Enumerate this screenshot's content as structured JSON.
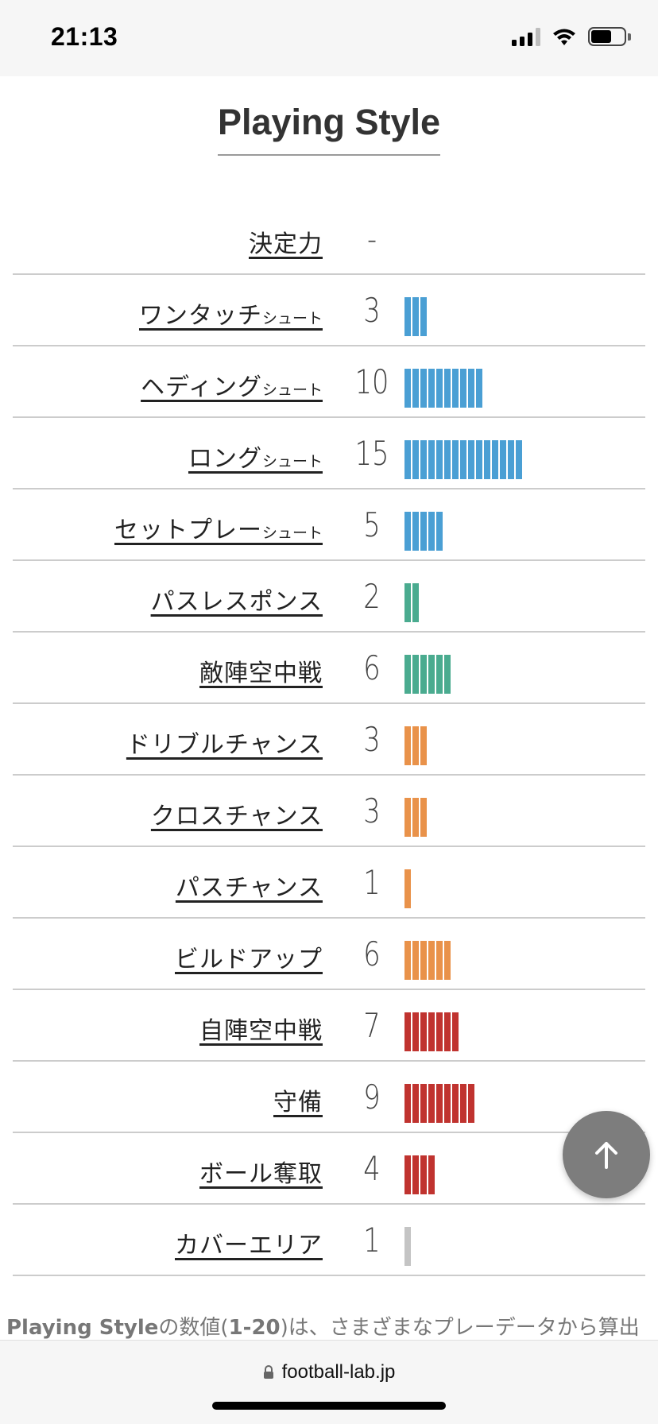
{
  "status_bar": {
    "time": "21:13"
  },
  "title": "Playing Style",
  "colors": {
    "shoot": "#4a9fd4",
    "pass": "#4aab8f",
    "chance": "#e9924a",
    "defense": "#c0332f",
    "cover": "#c4c4c4"
  },
  "rows": [
    {
      "label": "決定力",
      "suffix": "",
      "value": "-",
      "count": 0,
      "color": "#4a9fd4"
    },
    {
      "label": "ワンタッチ",
      "suffix": "シュート",
      "value": "3",
      "count": 3,
      "color": "#4a9fd4"
    },
    {
      "label": "ヘディング",
      "suffix": "シュート",
      "value": "10",
      "count": 10,
      "color": "#4a9fd4"
    },
    {
      "label": "ロング",
      "suffix": "シュート",
      "value": "15",
      "count": 15,
      "color": "#4a9fd4"
    },
    {
      "label": "セットプレー",
      "suffix": "シュート",
      "value": "5",
      "count": 5,
      "color": "#4a9fd4"
    },
    {
      "label": "パスレスポンス",
      "suffix": "",
      "value": "2",
      "count": 2,
      "color": "#4aab8f"
    },
    {
      "label": "敵陣空中戦",
      "suffix": "",
      "value": "6",
      "count": 6,
      "color": "#4aab8f"
    },
    {
      "label": "ドリブルチャンス",
      "suffix": "",
      "value": "3",
      "count": 3,
      "color": "#e9924a"
    },
    {
      "label": "クロスチャンス",
      "suffix": "",
      "value": "3",
      "count": 3,
      "color": "#e9924a"
    },
    {
      "label": "パスチャンス",
      "suffix": "",
      "value": "1",
      "count": 1,
      "color": "#e9924a"
    },
    {
      "label": "ビルドアップ",
      "suffix": "",
      "value": "6",
      "count": 6,
      "color": "#e9924a"
    },
    {
      "label": "自陣空中戦",
      "suffix": "",
      "value": "7",
      "count": 7,
      "color": "#c0332f"
    },
    {
      "label": "守備",
      "suffix": "",
      "value": "9",
      "count": 9,
      "color": "#c0332f"
    },
    {
      "label": "ボール奪取",
      "suffix": "",
      "value": "4",
      "count": 4,
      "color": "#c0332f"
    },
    {
      "label": "カバーエリア",
      "suffix": "",
      "value": "1",
      "count": 1,
      "color": "#c4c4c4"
    }
  ],
  "footnote": {
    "bold1": "Playing Style",
    "t1": "の数値(",
    "bold2": "1-20",
    "t2": ")は、さまざまなプレーデータから算出"
  },
  "browser": {
    "url": "football-lab.jp"
  },
  "icons": {
    "scroll_top": "arrow-up-icon",
    "lock": "lock-icon"
  }
}
